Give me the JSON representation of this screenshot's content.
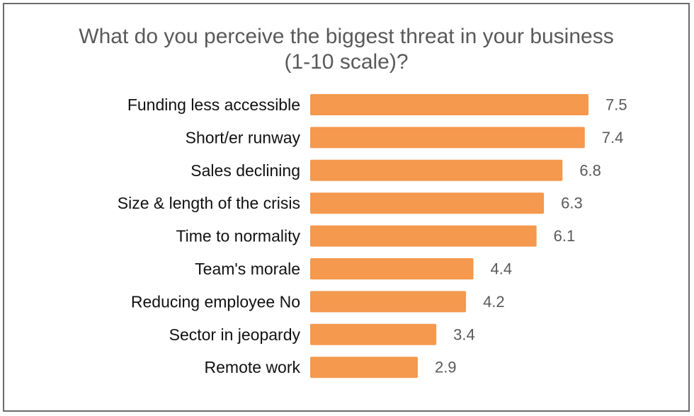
{
  "chart_data": {
    "type": "bar",
    "orientation": "horizontal",
    "title_lines": [
      "What do you perceive the biggest threat in your business",
      "(1-10 scale)?"
    ],
    "categories": [
      "Funding less accessible",
      "Short/er runway",
      "Sales declining",
      "Size & length of the crisis",
      "Time to normality",
      "Team's morale",
      "Reducing employee No",
      "Sector in jeopardy",
      "Remote work"
    ],
    "values": [
      7.5,
      7.4,
      6.8,
      6.3,
      6.1,
      4.4,
      4.2,
      3.4,
      2.9
    ],
    "value_labels": [
      "7.5",
      "7.4",
      "6.8",
      "6.3",
      "6.1",
      "4.4",
      "4.2",
      "3.4",
      "2.9"
    ],
    "xlim": [
      0,
      10
    ],
    "grid": false,
    "bar_color": "#F4994E"
  }
}
